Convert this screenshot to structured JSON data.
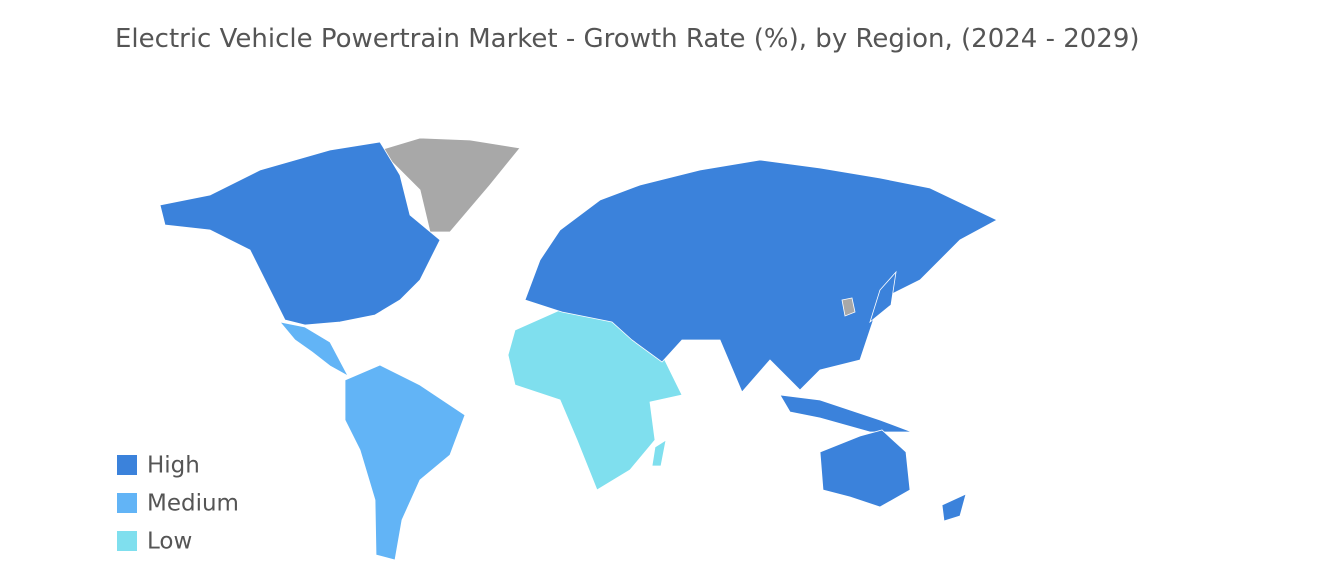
{
  "chart_data": {
    "type": "choropleth",
    "title": "Electric Vehicle Powertrain Market - Growth Rate (%), by Region, (2024 - 2029)",
    "legend": [
      {
        "name": "High",
        "color": "#3b82db"
      },
      {
        "name": "Medium",
        "color": "#62b4f6"
      },
      {
        "name": "Low",
        "color": "#7fdfee"
      }
    ],
    "no_data_color": "#a8a8a8",
    "legend_position": "lower left"
  }
}
